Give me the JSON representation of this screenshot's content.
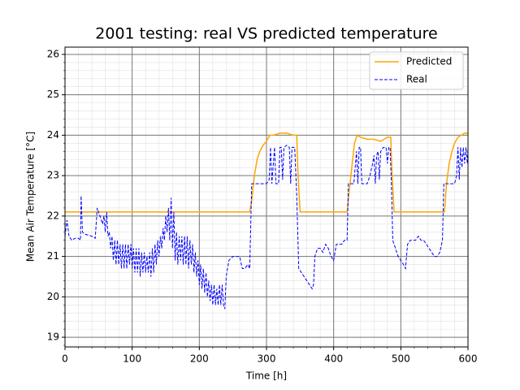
{
  "chart_data": {
    "type": "line",
    "title": "2001 testing: real VS predicted temperature",
    "x_label": "Time [h]",
    "y_label": "Mean Air Temperature [°C]",
    "xlim": [
      0,
      600
    ],
    "ylim": [
      18.76,
      26.18
    ],
    "xticks": [
      0,
      100,
      200,
      300,
      400,
      500,
      600
    ],
    "yticks": [
      19,
      20,
      21,
      22,
      23,
      24,
      25,
      26
    ],
    "grid": true,
    "minor_grid": true,
    "legend": "upper right",
    "series": [
      {
        "name": "Predicted",
        "color": "#ffa500",
        "linestyle": "solid",
        "x": [
          0,
          275,
          278,
          282,
          286,
          290,
          295,
          300,
          305,
          310,
          320,
          330,
          340,
          345,
          347,
          350,
          420,
          423,
          427,
          431,
          435,
          440,
          450,
          460,
          470,
          475,
          480,
          485,
          487,
          490,
          565,
          568,
          572,
          576,
          580,
          585,
          590,
          595,
          600
        ],
        "values": [
          22.1,
          22.1,
          22.4,
          23.0,
          23.4,
          23.6,
          23.75,
          23.85,
          24.0,
          24.0,
          24.05,
          24.05,
          24.0,
          24.0,
          23.0,
          22.1,
          22.1,
          22.6,
          23.2,
          23.8,
          24.0,
          23.95,
          23.9,
          23.9,
          23.85,
          23.9,
          23.95,
          23.95,
          23.0,
          22.1,
          22.1,
          22.8,
          23.3,
          23.6,
          23.8,
          23.95,
          24.0,
          24.05,
          24.05
        ]
      },
      {
        "name": "Real",
        "color": "#0000ff",
        "linestyle": "dashed",
        "x": [
          0,
          3,
          6,
          10,
          15,
          20,
          23,
          24,
          26,
          30,
          40,
          45,
          48,
          52,
          56,
          58,
          60,
          62,
          64,
          66,
          68,
          70,
          72,
          74,
          76,
          78,
          80,
          82,
          84,
          86,
          88,
          90,
          92,
          94,
          96,
          98,
          100,
          102,
          104,
          106,
          108,
          110,
          112,
          114,
          116,
          118,
          120,
          122,
          124,
          126,
          128,
          130,
          132,
          134,
          136,
          138,
          140,
          142,
          144,
          146,
          148,
          150,
          152,
          154,
          156,
          158,
          160,
          162,
          164,
          166,
          168,
          170,
          172,
          174,
          176,
          178,
          180,
          182,
          184,
          186,
          188,
          190,
          192,
          194,
          196,
          198,
          200,
          202,
          204,
          206,
          208,
          210,
          212,
          214,
          216,
          218,
          220,
          222,
          224,
          226,
          228,
          230,
          232,
          234,
          236,
          238,
          240,
          244,
          250,
          256,
          260,
          264,
          268,
          272,
          275,
          278,
          285,
          290,
          295,
          300,
          304,
          306,
          308,
          312,
          314,
          318,
          320,
          322,
          324,
          326,
          330,
          334,
          336,
          338,
          342,
          345,
          348,
          352,
          356,
          360,
          364,
          368,
          370,
          372,
          376,
          380,
          384,
          388,
          392,
          396,
          400,
          404,
          408,
          412,
          416,
          420,
          422,
          426,
          430,
          434,
          436,
          438,
          440,
          442,
          446,
          450,
          454,
          458,
          460,
          462,
          464,
          466,
          468,
          470,
          474,
          478,
          480,
          482,
          484,
          486,
          488,
          492,
          496,
          500,
          504,
          507,
          510,
          514,
          518,
          522,
          526,
          530,
          534,
          538,
          542,
          546,
          550,
          554,
          558,
          562,
          564,
          570,
          575,
          580,
          583,
          585,
          587,
          589,
          591,
          593,
          595,
          597,
          599,
          600
        ],
        "values": [
          21.5,
          21.9,
          21.5,
          21.4,
          21.45,
          21.45,
          21.4,
          22.5,
          21.6,
          21.55,
          21.5,
          21.45,
          22.2,
          22.0,
          21.8,
          22.0,
          21.6,
          22.1,
          21.5,
          21.6,
          21.2,
          21.5,
          20.9,
          21.4,
          20.8,
          21.4,
          20.8,
          21.3,
          20.7,
          21.3,
          20.7,
          21.3,
          20.7,
          21.3,
          20.8,
          21.3,
          20.7,
          21.2,
          20.6,
          21.2,
          20.6,
          21.2,
          20.5,
          21.1,
          20.6,
          21.1,
          20.6,
          21.0,
          20.6,
          21.1,
          20.5,
          21.2,
          20.6,
          21.3,
          20.8,
          21.4,
          21.0,
          21.5,
          21.2,
          21.7,
          21.4,
          22.0,
          21.6,
          22.2,
          21.4,
          22.45,
          21.2,
          22.1,
          20.9,
          21.6,
          20.8,
          21.5,
          20.9,
          21.5,
          20.8,
          21.5,
          20.8,
          21.5,
          20.7,
          21.4,
          20.8,
          21.3,
          20.6,
          21.1,
          20.5,
          20.9,
          20.3,
          20.8,
          20.2,
          20.7,
          20.1,
          20.6,
          20.0,
          20.4,
          19.9,
          20.3,
          19.8,
          20.3,
          19.8,
          20.2,
          19.8,
          20.3,
          19.8,
          20.3,
          19.8,
          19.7,
          20.5,
          20.9,
          21.0,
          21.0,
          21.0,
          20.7,
          20.7,
          20.8,
          20.7,
          22.8,
          22.8,
          22.8,
          22.8,
          22.8,
          22.9,
          23.7,
          22.8,
          23.7,
          22.8,
          22.8,
          23.7,
          23.7,
          22.9,
          23.7,
          23.75,
          23.7,
          22.8,
          23.7,
          23.7,
          22.5,
          20.7,
          20.6,
          20.5,
          20.4,
          20.3,
          20.2,
          20.3,
          21.0,
          21.2,
          21.2,
          21.1,
          21.3,
          21.2,
          21.0,
          20.9,
          21.3,
          21.3,
          21.3,
          21.4,
          21.4,
          22.8,
          22.8,
          22.8,
          23.6,
          22.8,
          23.7,
          23.7,
          22.8,
          22.8,
          22.8,
          23.0,
          23.3,
          23.5,
          22.8,
          23.5,
          23.6,
          22.9,
          23.6,
          23.7,
          23.7,
          23.3,
          23.7,
          23.7,
          22.8,
          21.4,
          21.2,
          21.0,
          20.9,
          20.8,
          20.7,
          21.3,
          21.4,
          21.4,
          21.4,
          21.5,
          21.4,
          21.4,
          21.3,
          21.2,
          21.1,
          21.0,
          21.0,
          21.1,
          21.4,
          22.8,
          22.8,
          22.8,
          22.8,
          23.0,
          23.7,
          22.9,
          23.7,
          23.2,
          23.7,
          23.3,
          23.7,
          23.3,
          23.7
        ]
      }
    ]
  }
}
